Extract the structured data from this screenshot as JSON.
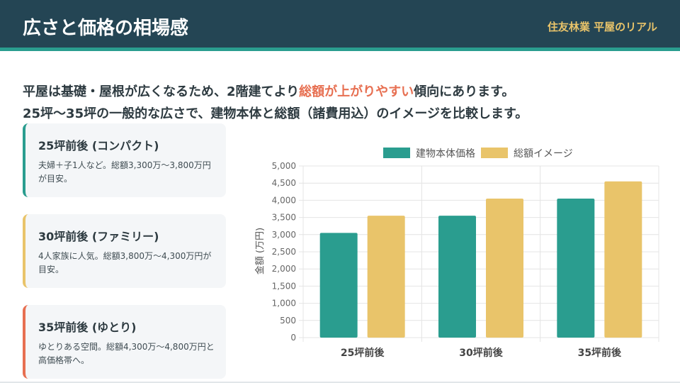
{
  "header": {
    "title": "広さと価格の相場感",
    "brand": "住友林業 平屋のリアル"
  },
  "intro": {
    "line1_pre": "平屋は基礎・屋根が広くなるため、2階建てより",
    "line1_highlight": "総額が上がりやすい",
    "line1_post": "傾向にあります。",
    "line2": "25坪〜35坪の一般的な広さで、建物本体と総額（諸費用込）のイメージを比較します。"
  },
  "cards": [
    {
      "title": "25坪前後 (コンパクト)",
      "desc": "夫婦＋子1人など。総額3,300万〜3,800万円が目安。",
      "accent": "#2a9d8f"
    },
    {
      "title": "30坪前後 (ファミリー)",
      "desc": "4人家族に人気。総額3,800万〜4,300万円が目安。",
      "accent": "#e9c46a"
    },
    {
      "title": "35坪前後 (ゆとり)",
      "desc": "ゆとりある空間。総額4,300万〜4,800万円と高価格帯へ。",
      "accent": "#e76f51"
    }
  ],
  "colors": {
    "header_bg": "#244554",
    "accent_teal": "#2a9d8f",
    "accent_yellow": "#e9c46a",
    "accent_red": "#e76f51"
  },
  "chart_data": {
    "type": "bar",
    "categories": [
      "25坪前後",
      "30坪前後",
      "35坪前後"
    ],
    "series": [
      {
        "name": "建物本体価格",
        "values": [
          3050,
          3550,
          4050
        ],
        "color": "#2a9d8f"
      },
      {
        "name": "総額イメージ",
        "values": [
          3550,
          4050,
          4550
        ],
        "color": "#e9c46a"
      }
    ],
    "ylabel": "金額 (万円)",
    "ylim": [
      0,
      5000
    ],
    "yticks": [
      0,
      500,
      1000,
      1500,
      2000,
      2500,
      3000,
      3500,
      4000,
      4500,
      5000
    ],
    "ytick_labels": [
      "0",
      "500",
      "1,000",
      "1,500",
      "2,000",
      "2,500",
      "3,000",
      "3,500",
      "4,000",
      "4,500",
      "5,000"
    ],
    "grid": true,
    "legend_position": "top-center"
  }
}
